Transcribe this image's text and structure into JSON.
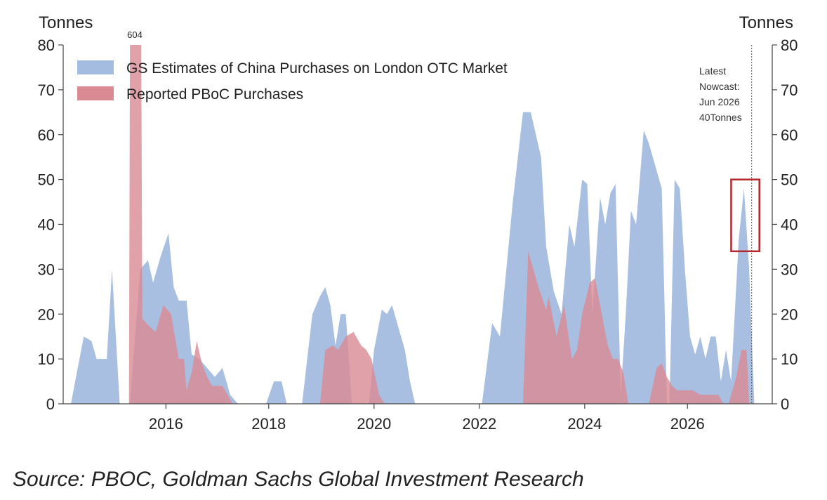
{
  "chart_data": {
    "type": "area",
    "title": "",
    "left_axis_label": "Tonnes",
    "right_axis_label": "Tonnes",
    "ylim": [
      0,
      80
    ],
    "yticks": [
      0,
      10,
      20,
      30,
      40,
      50,
      60,
      70,
      80
    ],
    "xlim": [
      2014.2,
      2028.0
    ],
    "xticks": [
      "2016",
      "2018",
      "2020",
      "2022",
      "2024",
      "2026"
    ],
    "legend_position": "top-left",
    "colors": {
      "gs": "#a3bcdf",
      "pboc": "#d98a93",
      "marker": "#b3272d"
    },
    "series": [
      {
        "name": "GS Estimates of China Purchases on London OTC Market",
        "points": [
          [
            2014.35,
            0
          ],
          [
            2014.6,
            15
          ],
          [
            2014.75,
            14
          ],
          [
            2014.85,
            10
          ],
          [
            2015.05,
            10
          ],
          [
            2015.15,
            30
          ],
          [
            2015.3,
            0
          ],
          [
            2015.5,
            0
          ],
          [
            2015.7,
            30
          ],
          [
            2015.85,
            32
          ],
          [
            2015.95,
            27
          ],
          [
            2016.1,
            33
          ],
          [
            2016.25,
            38
          ],
          [
            2016.35,
            26
          ],
          [
            2016.45,
            23
          ],
          [
            2016.6,
            23
          ],
          [
            2016.7,
            11
          ],
          [
            2016.85,
            10
          ],
          [
            2017.0,
            8
          ],
          [
            2017.15,
            6
          ],
          [
            2017.3,
            8
          ],
          [
            2017.45,
            2
          ],
          [
            2017.6,
            0
          ],
          [
            2018.15,
            0
          ],
          [
            2018.3,
            5
          ],
          [
            2018.45,
            5
          ],
          [
            2018.55,
            0
          ],
          [
            2018.85,
            0
          ],
          [
            2018.95,
            10
          ],
          [
            2019.05,
            20
          ],
          [
            2019.2,
            24
          ],
          [
            2019.3,
            26
          ],
          [
            2019.4,
            22
          ],
          [
            2019.5,
            13
          ],
          [
            2019.6,
            20
          ],
          [
            2019.7,
            20
          ],
          [
            2019.82,
            0
          ],
          [
            2020.15,
            0
          ],
          [
            2020.25,
            12
          ],
          [
            2020.4,
            21
          ],
          [
            2020.5,
            20
          ],
          [
            2020.6,
            22
          ],
          [
            2020.7,
            18
          ],
          [
            2020.85,
            12
          ],
          [
            2020.95,
            5
          ],
          [
            2021.05,
            0
          ],
          [
            2022.35,
            0
          ],
          [
            2022.55,
            18
          ],
          [
            2022.7,
            15
          ],
          [
            2022.95,
            45
          ],
          [
            2023.15,
            65
          ],
          [
            2023.3,
            65
          ],
          [
            2023.5,
            55
          ],
          [
            2023.6,
            35
          ],
          [
            2023.75,
            25
          ],
          [
            2023.9,
            20
          ],
          [
            2024.05,
            40
          ],
          [
            2024.15,
            35
          ],
          [
            2024.3,
            50
          ],
          [
            2024.4,
            49
          ],
          [
            2024.5,
            20
          ],
          [
            2024.65,
            46
          ],
          [
            2024.75,
            40
          ],
          [
            2024.85,
            47
          ],
          [
            2024.95,
            49
          ],
          [
            2025.05,
            2
          ],
          [
            2025.15,
            20
          ],
          [
            2025.25,
            43
          ],
          [
            2025.35,
            40
          ],
          [
            2025.5,
            61
          ],
          [
            2025.6,
            58
          ],
          [
            2025.75,
            52
          ],
          [
            2025.85,
            48
          ],
          [
            2025.95,
            0
          ],
          [
            2026.0,
            0
          ],
          [
            2026.1,
            50
          ],
          [
            2026.2,
            48
          ],
          [
            2026.3,
            30
          ],
          [
            2026.4,
            15
          ],
          [
            2026.5,
            11
          ],
          [
            2026.6,
            15
          ],
          [
            2026.7,
            10
          ],
          [
            2026.8,
            15
          ],
          [
            2026.9,
            15
          ],
          [
            2027.0,
            5
          ],
          [
            2027.1,
            12
          ],
          [
            2027.2,
            5
          ],
          [
            2027.35,
            37
          ],
          [
            2027.45,
            48
          ],
          [
            2027.55,
            30
          ],
          [
            2027.65,
            0
          ]
        ]
      },
      {
        "name": "Reported PBoC Purchases",
        "points": [
          [
            2015.48,
            0
          ],
          [
            2015.5,
            80
          ],
          [
            2015.72,
            80
          ],
          [
            2015.74,
            19
          ],
          [
            2015.9,
            17
          ],
          [
            2016.0,
            16
          ],
          [
            2016.15,
            22
          ],
          [
            2016.3,
            20
          ],
          [
            2016.45,
            10
          ],
          [
            2016.55,
            10
          ],
          [
            2016.6,
            3
          ],
          [
            2016.7,
            7
          ],
          [
            2016.8,
            14
          ],
          [
            2016.9,
            9
          ],
          [
            2017.0,
            6
          ],
          [
            2017.1,
            4
          ],
          [
            2017.3,
            4
          ],
          [
            2017.5,
            0
          ],
          [
            2019.2,
            0
          ],
          [
            2019.3,
            12
          ],
          [
            2019.45,
            13
          ],
          [
            2019.55,
            12
          ],
          [
            2019.7,
            15
          ],
          [
            2019.85,
            16
          ],
          [
            2020.0,
            13
          ],
          [
            2020.1,
            12
          ],
          [
            2020.2,
            10
          ],
          [
            2020.35,
            2
          ],
          [
            2020.45,
            0
          ],
          [
            2023.15,
            0
          ],
          [
            2023.25,
            34
          ],
          [
            2023.45,
            26
          ],
          [
            2023.6,
            21
          ],
          [
            2023.65,
            24
          ],
          [
            2023.8,
            15
          ],
          [
            2023.95,
            22
          ],
          [
            2024.1,
            10
          ],
          [
            2024.2,
            12
          ],
          [
            2024.3,
            20
          ],
          [
            2024.45,
            27
          ],
          [
            2024.55,
            28
          ],
          [
            2024.65,
            22
          ],
          [
            2024.8,
            13
          ],
          [
            2024.9,
            10
          ],
          [
            2025.0,
            10
          ],
          [
            2025.1,
            7
          ],
          [
            2025.2,
            0
          ],
          [
            2025.6,
            0
          ],
          [
            2025.75,
            8
          ],
          [
            2025.85,
            9
          ],
          [
            2025.95,
            6
          ],
          [
            2026.05,
            4
          ],
          [
            2026.15,
            3
          ],
          [
            2026.3,
            3
          ],
          [
            2026.45,
            3
          ],
          [
            2026.6,
            2
          ],
          [
            2026.7,
            2
          ],
          [
            2026.85,
            2
          ],
          [
            2026.95,
            2
          ],
          [
            2027.05,
            0
          ],
          [
            2027.15,
            0
          ],
          [
            2027.3,
            6
          ],
          [
            2027.4,
            12
          ],
          [
            2027.5,
            12
          ],
          [
            2027.55,
            0
          ]
        ]
      }
    ],
    "annotations": {
      "spike_label": "604",
      "nowcast_x": 2027.6,
      "nowcast_lines": [
        "Latest",
        "Nowcast:",
        "Jun 2026",
        "40Tonnes"
      ],
      "highlight_box": {
        "x": [
          2027.2,
          2027.75
        ],
        "y": [
          34,
          50
        ]
      }
    }
  },
  "source_text": "Source: PBOC, Goldman Sachs Global Investment Research"
}
